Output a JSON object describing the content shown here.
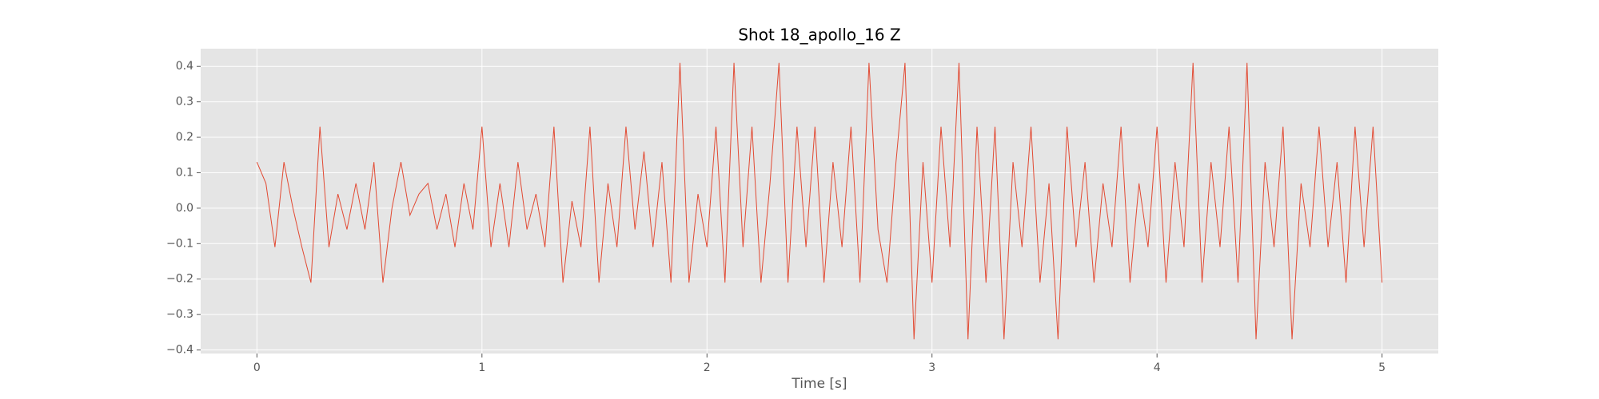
{
  "chart_data": {
    "type": "line",
    "title": "Shot 18_apollo_16 Z",
    "x_label": "Time [s]",
    "x": [
      0,
      0.04,
      0.08,
      0.12,
      0.16,
      0.2,
      0.24,
      0.28,
      0.32,
      0.36,
      0.4,
      0.44,
      0.48,
      0.52,
      0.56,
      0.6,
      0.64,
      0.68,
      0.72,
      0.76,
      0.8,
      0.84,
      0.88,
      0.92,
      0.96,
      1,
      1.04,
      1.08,
      1.12,
      1.16,
      1.2,
      1.24,
      1.28,
      1.32,
      1.36,
      1.4,
      1.44,
      1.48,
      1.52,
      1.56,
      1.6,
      1.64,
      1.68,
      1.72,
      1.76,
      1.8,
      1.84,
      1.88,
      1.92,
      1.96,
      2,
      2.04,
      2.08,
      2.12,
      2.16,
      2.2,
      2.24,
      2.28,
      2.32,
      2.36,
      2.4,
      2.44,
      2.48,
      2.52,
      2.56,
      2.6,
      2.64,
      2.68,
      2.72,
      2.76,
      2.8,
      2.84,
      2.88,
      2.92,
      2.96,
      3,
      3.04,
      3.08,
      3.12,
      3.16,
      3.2,
      3.24,
      3.28,
      3.32,
      3.36,
      3.4,
      3.44,
      3.48,
      3.52,
      3.56,
      3.6,
      3.64,
      3.68,
      3.72,
      3.76,
      3.8,
      3.84,
      3.88,
      3.92,
      3.96,
      4,
      4.04,
      4.08,
      4.12,
      4.16,
      4.2,
      4.24,
      4.28,
      4.32,
      4.36,
      4.4,
      4.44,
      4.48,
      4.52,
      4.56,
      4.6,
      4.64,
      4.68,
      4.72,
      4.76,
      4.8,
      4.84,
      4.88,
      4.92,
      4.96,
      5
    ],
    "series": [
      {
        "color": "#E24A33",
        "values": [
          0.13,
          0.07,
          -0.11,
          0.13,
          0.0,
          -0.11,
          -0.21,
          0.23,
          -0.11,
          0.04,
          -0.06,
          0.07,
          -0.06,
          0.13,
          -0.21,
          0.0,
          0.13,
          -0.02,
          0.04,
          0.07,
          -0.06,
          0.04,
          -0.11,
          0.07,
          -0.06,
          0.23,
          -0.11,
          0.07,
          -0.11,
          0.13,
          -0.06,
          0.04,
          -0.11,
          0.23,
          -0.21,
          0.02,
          -0.11,
          0.23,
          -0.21,
          0.07,
          -0.11,
          0.23,
          -0.06,
          0.16,
          -0.11,
          0.13,
          -0.21,
          0.41,
          -0.21,
          0.04,
          -0.11,
          0.23,
          -0.21,
          0.41,
          -0.11,
          0.23,
          -0.21,
          0.07,
          0.41,
          -0.21,
          0.23,
          -0.11,
          0.23,
          -0.21,
          0.13,
          -0.11,
          0.23,
          -0.21,
          0.41,
          -0.06,
          -0.21,
          0.13,
          0.41,
          -0.37,
          0.13,
          -0.21,
          0.23,
          -0.11,
          0.41,
          -0.37,
          0.23,
          -0.21,
          0.23,
          -0.37,
          0.13,
          -0.11,
          0.23,
          -0.21,
          0.07,
          -0.37,
          0.23,
          -0.11,
          0.13,
          -0.21,
          0.07,
          -0.11,
          0.23,
          -0.21,
          0.07,
          -0.11,
          0.23,
          -0.21,
          0.13,
          -0.11,
          0.41,
          -0.21,
          0.13,
          -0.11,
          0.23,
          -0.21,
          0.41,
          -0.37,
          0.13,
          -0.11,
          0.23,
          -0.37,
          0.07,
          -0.11,
          0.23,
          -0.11,
          0.13,
          -0.21,
          0.23,
          -0.11,
          0.23,
          -0.21
        ]
      }
    ],
    "xlim": [
      -0.25,
      5.25
    ],
    "ylim": [
      -0.41,
      0.45
    ],
    "xticks": [
      0,
      1,
      2,
      3,
      4,
      5
    ],
    "yticks": [
      {
        "value": -0.4,
        "label": "−0.4"
      },
      {
        "value": -0.3,
        "label": "−0.3"
      },
      {
        "value": -0.2,
        "label": "−0.2"
      },
      {
        "value": -0.1,
        "label": "−0.1"
      },
      {
        "value": 0,
        "label": "0.0"
      },
      0.1,
      0.2,
      0.3,
      0.4
    ],
    "grid": true
  }
}
